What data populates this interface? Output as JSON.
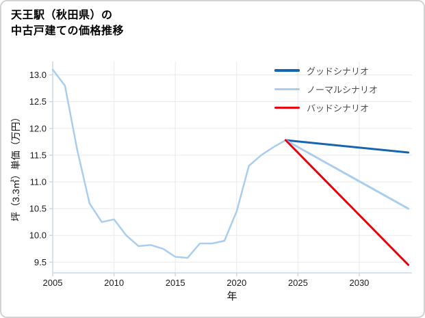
{
  "title": {
    "line1": "天王駅（秋田県）の",
    "line2": "中古戸建ての価格推移"
  },
  "chart_data": {
    "type": "line",
    "title": "天王駅（秋田県）の中古戸建ての価格推移",
    "xlabel": "年",
    "ylabel": "坪（3.3㎡）単価（万円）",
    "xlim": [
      2005,
      2034.3
    ],
    "ylim": [
      9.3,
      13.25
    ],
    "xticks": [
      2005,
      2010,
      2015,
      2020,
      2025,
      2030
    ],
    "yticks": [
      9.5,
      10.0,
      10.5,
      11.0,
      11.5,
      12.0,
      12.5,
      13.0
    ],
    "grid": true,
    "legend_position": "upper right",
    "series": [
      {
        "id": "historical",
        "color": "#a9cdee",
        "width": 2.5,
        "x": [
          2005,
          2006,
          2007,
          2008,
          2009,
          2010,
          2011,
          2012,
          2013,
          2014,
          2015,
          2016,
          2017,
          2018,
          2019,
          2020,
          2021,
          2022,
          2023,
          2024
        ],
        "y": [
          13.1,
          12.8,
          11.6,
          10.6,
          10.25,
          10.3,
          10.0,
          9.8,
          9.82,
          9.75,
          9.6,
          9.58,
          9.85,
          9.85,
          9.9,
          10.45,
          11.3,
          11.5,
          11.65,
          11.78
        ]
      },
      {
        "id": "good",
        "color": "#1565b0",
        "width": 3,
        "x": [
          2024,
          2034
        ],
        "y": [
          11.78,
          11.55
        ]
      },
      {
        "id": "normal",
        "color": "#a9cdee",
        "width": 3,
        "x": [
          2024,
          2034
        ],
        "y": [
          11.78,
          10.5
        ]
      },
      {
        "id": "bad",
        "color": "#e8000b",
        "width": 3,
        "x": [
          2024,
          2034
        ],
        "y": [
          11.78,
          9.45
        ]
      }
    ],
    "legend": [
      {
        "id": "good",
        "label": "グッドシナリオ",
        "color": "#1565b0"
      },
      {
        "id": "normal",
        "label": "ノーマルシナリオ",
        "color": "#a9cdee"
      },
      {
        "id": "bad",
        "label": "バッドシナリオ",
        "color": "#e8000b"
      }
    ]
  }
}
